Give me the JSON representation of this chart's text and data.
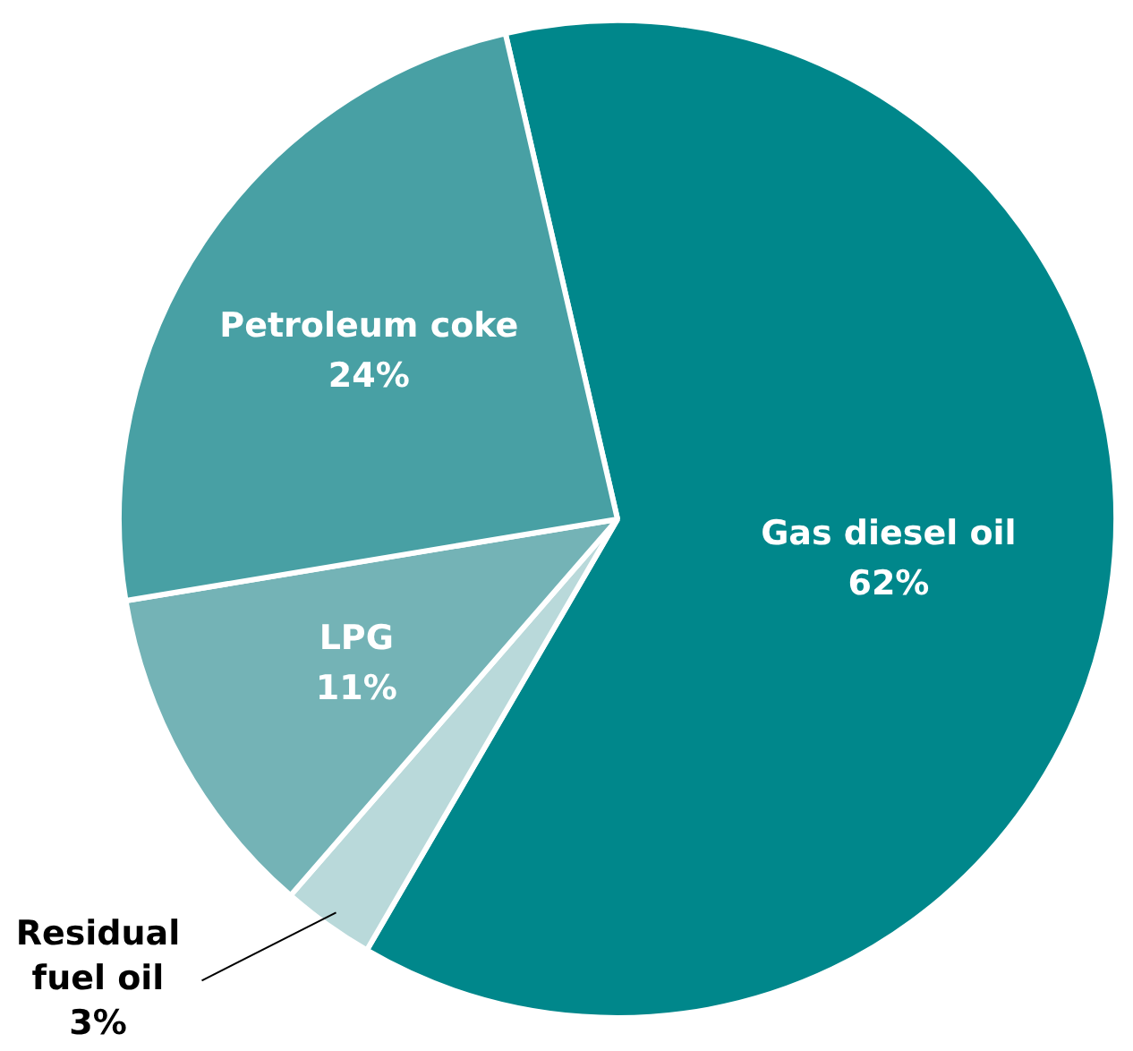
{
  "chart_data": {
    "type": "pie",
    "categories": [
      "Gas diesel oil",
      "Residual fuel oil",
      "LPG",
      "Petroleum coke"
    ],
    "values": [
      62,
      3,
      11,
      24
    ],
    "colors": [
      "#00878b",
      "#b9d9da",
      "#74b3b6",
      "#48a0a4"
    ],
    "value_labels": [
      "62%",
      "3%",
      "11%",
      "24%"
    ],
    "legend": false
  }
}
